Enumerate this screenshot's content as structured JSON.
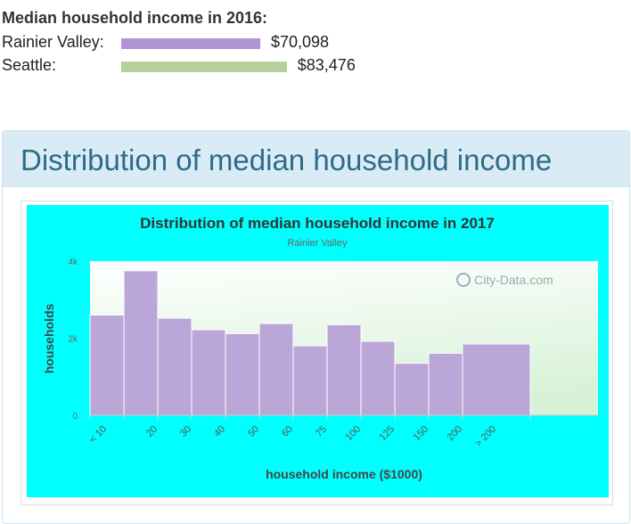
{
  "summary": {
    "title": "Median household income in 2016:",
    "rows": [
      {
        "label": "Rainier Valley:",
        "value": "$70,098",
        "amount": 70098,
        "color": "#b094d3"
      },
      {
        "label": "Seattle:",
        "value": "$83,476",
        "amount": 83476,
        "color": "#b5d09a"
      }
    ]
  },
  "section": {
    "title": "Distribution of median household income"
  },
  "chart_data": {
    "type": "bar",
    "title": "Distribution of median household income in 2017",
    "subtitle": "Rainier Valley",
    "xlabel": "household income ($1000)",
    "ylabel": "households",
    "watermark": "City-Data.com",
    "ylim": [
      0,
      4000
    ],
    "yticks": [
      {
        "value": 0,
        "label": "0"
      },
      {
        "value": 2000,
        "label": "2k"
      },
      {
        "value": 4000,
        "label": "4k"
      }
    ],
    "tick_labels": [
      "< 10",
      "20",
      "30",
      "40",
      "50",
      "60",
      "75",
      "100",
      "125",
      "150",
      "200",
      "> 200"
    ],
    "bins": [
      {
        "from": 0,
        "to": 10,
        "value": 2600
      },
      {
        "from": 10,
        "to": 20,
        "value": 3750
      },
      {
        "from": 20,
        "to": 30,
        "value": 2520
      },
      {
        "from": 30,
        "to": 40,
        "value": 2220
      },
      {
        "from": 40,
        "to": 50,
        "value": 2120
      },
      {
        "from": 50,
        "to": 60,
        "value": 2380
      },
      {
        "from": 60,
        "to": 75,
        "value": 1800
      },
      {
        "from": 75,
        "to": 100,
        "value": 2350
      },
      {
        "from": 100,
        "to": 125,
        "value": 1920
      },
      {
        "from": 125,
        "to": 150,
        "value": 1350
      },
      {
        "from": 150,
        "to": 200,
        "value": 1610
      },
      {
        "from": 200,
        "to": 250,
        "value": 1850
      }
    ],
    "bar_color": "#bba6d8",
    "grid": false,
    "legend": "none"
  }
}
